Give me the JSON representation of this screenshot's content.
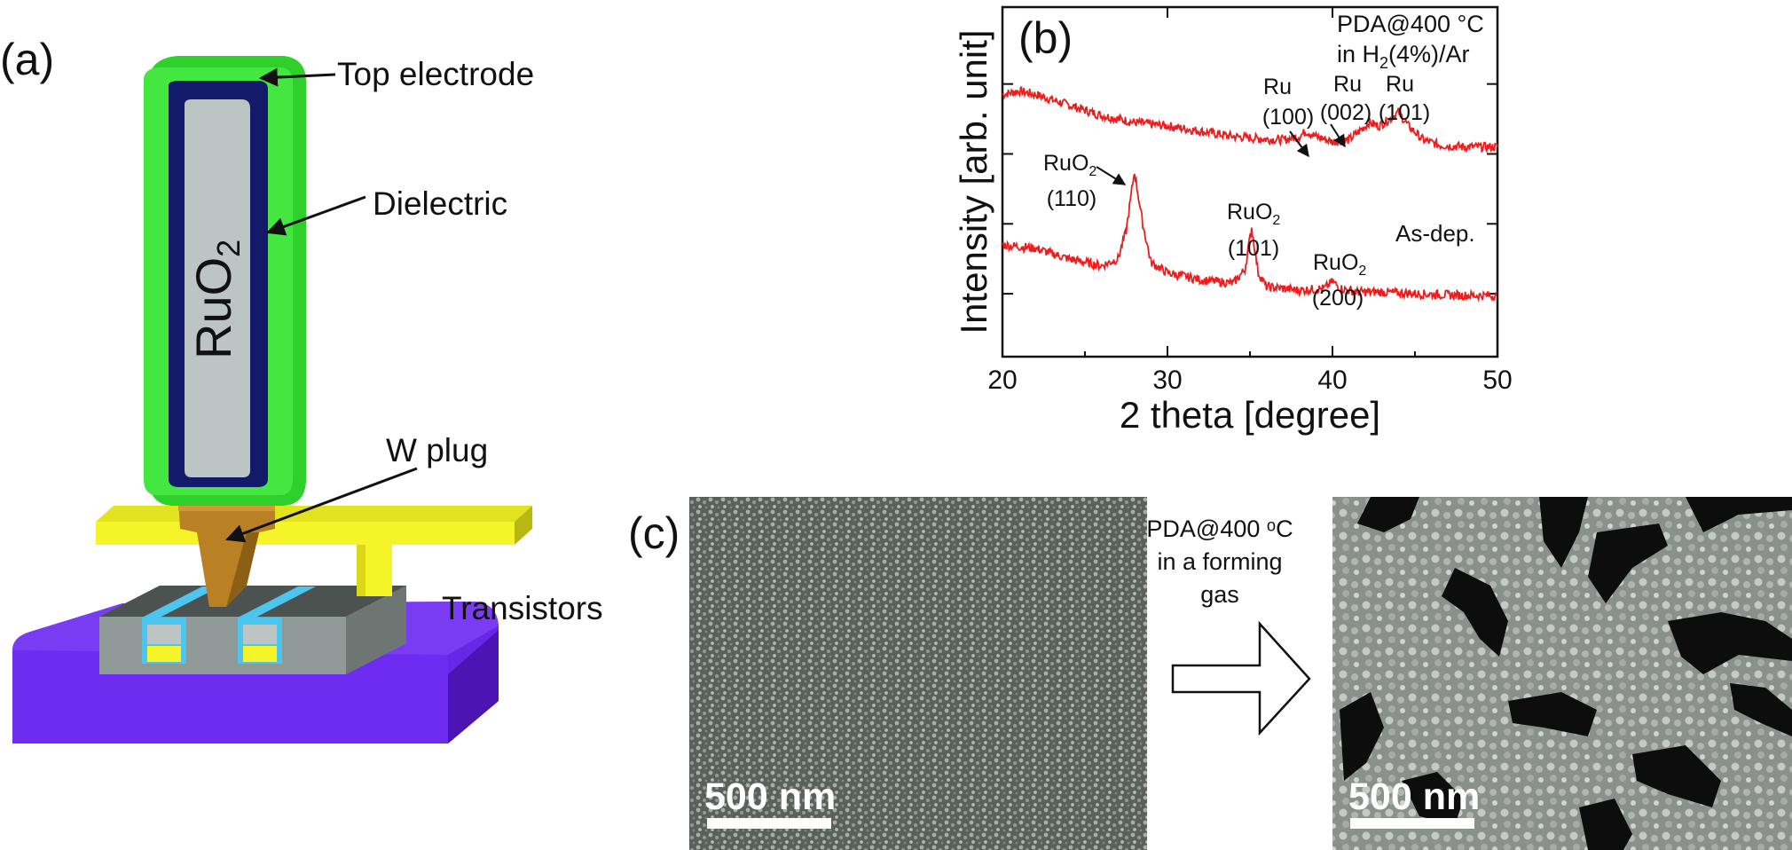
{
  "panels": {
    "a": {
      "label": "(a)",
      "annotations": {
        "top_electrode": "Top electrode",
        "dielectric": "Dielectric",
        "w_plug": "W plug",
        "transistors": "Transistors"
      },
      "material_main": "RuO",
      "material_sub": "2",
      "colors": {
        "top_electrode": "#3ee43a",
        "dielectric": "#141a6a",
        "ruo2": "#bcc4c4",
        "w_plug": "#b98124",
        "interconnect": "#f4f428",
        "substrate": "#6a26e6",
        "transistor_body": "#8f9a98",
        "transistor_liner": "#4cc6ee"
      }
    },
    "b": {
      "label": "(b)",
      "condition_line1": "PDA@400 °C",
      "condition_line2_pre": "in H",
      "condition_line2_sub": "2",
      "condition_line2_post": "(4%)/Ar",
      "as_dep_label": "As-dep.",
      "peaks_annealed": [
        {
          "name": "Ru",
          "index": "(100)",
          "two_theta": 38.4
        },
        {
          "name": "Ru",
          "index": "(002)",
          "two_theta": 42.2
        },
        {
          "name": "Ru",
          "index": "(101)",
          "two_theta": 44.0
        }
      ],
      "peaks_as_dep": [
        {
          "name": "RuO",
          "sub": "2",
          "index": "(110)",
          "two_theta": 28.0
        },
        {
          "name": "RuO",
          "sub": "2",
          "index": "(101)",
          "two_theta": 35.1
        },
        {
          "name": "RuO",
          "sub": "2",
          "index": "(200)",
          "two_theta": 40.0
        }
      ]
    },
    "c": {
      "label": "(c)",
      "arrow_text": [
        "PDA@400 ᵒC",
        "in a forming",
        "gas"
      ],
      "scale_bar_left": "500 nm",
      "scale_bar_right": "500 nm"
    }
  },
  "chart_data": {
    "type": "line",
    "title": "",
    "xlabel": "2 theta [degree]",
    "ylabel": "Intensity [arb. unit]",
    "xlim": [
      20,
      50
    ],
    "ylim": [
      0,
      100
    ],
    "xticks": [
      20,
      30,
      40,
      50
    ],
    "yticks_unlabeled": [
      18,
      38,
      58,
      78
    ],
    "grid": false,
    "line_color": "#ee1c1c",
    "series": [
      {
        "name": "PDA@400 °C in H2(4%)/Ar",
        "x": [
          20,
          21,
          22,
          24,
          26,
          28,
          30,
          32,
          34,
          36,
          37,
          38,
          38.4,
          39,
          40,
          41,
          42,
          42.2,
          42.8,
          43.5,
          44,
          44.6,
          45.5,
          46.5,
          48,
          50
        ],
        "y": [
          75,
          76,
          75,
          72,
          69,
          67,
          66,
          64.5,
          63,
          62.2,
          62,
          63,
          64.5,
          63,
          61.5,
          62,
          66,
          67,
          66,
          68,
          70,
          66,
          62,
          60.5,
          60,
          60
        ]
      },
      {
        "name": "As-dep.",
        "x": [
          20,
          22,
          24,
          26,
          27,
          27.5,
          28,
          28.5,
          29,
          30,
          32,
          34,
          34.7,
          35.1,
          35.5,
          36,
          38,
          39.5,
          40,
          40.5,
          41.5,
          43,
          45,
          48,
          50
        ],
        "y": [
          32,
          31,
          28,
          26,
          28,
          36,
          53,
          38,
          27,
          24,
          22,
          21,
          25,
          37,
          24,
          20,
          19,
          19.5,
          21.5,
          19.5,
          18.5,
          18.5,
          18,
          17.5,
          17.5
        ]
      }
    ]
  }
}
